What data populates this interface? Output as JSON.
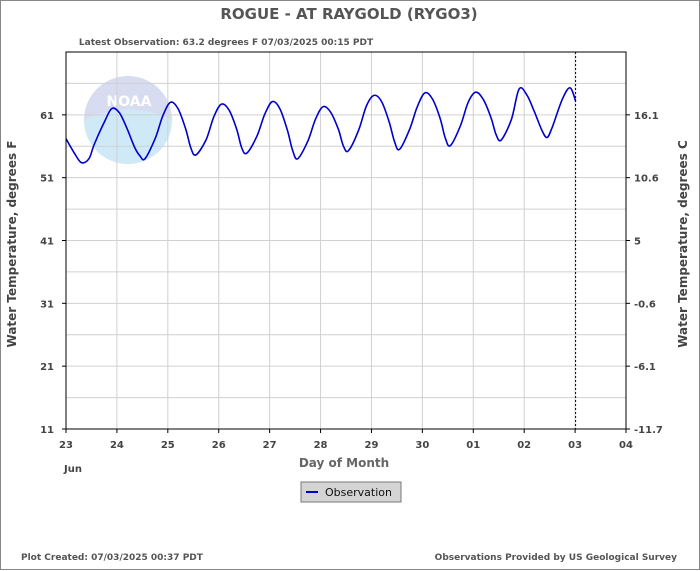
{
  "chart_data": {
    "type": "line",
    "title": "ROGUE - AT RAYGOLD  (RYGO3)",
    "subtitle": "Latest Observation: 63.2 degrees F 07/03/2025 00:15 PDT",
    "xlabel": "Day of Month",
    "xlabel_month": "Jun",
    "ylabel_left": "Water Temperature, degrees F",
    "ylabel_right": "Water Temperature, degrees C",
    "x_ticks": [
      "23",
      "24",
      "25",
      "26",
      "27",
      "28",
      "29",
      "30",
      "01",
      "02",
      "03",
      "04"
    ],
    "xlim": [
      0,
      11
    ],
    "ylim": [
      11,
      71
    ],
    "y_ticks_left": [
      "61",
      "51",
      "41",
      "31",
      "21",
      "11"
    ],
    "y_ticks_left_values": [
      61,
      51,
      41,
      31,
      21,
      11
    ],
    "y_ticks_right": [
      "16.1",
      "10.6",
      "5",
      "-0.6",
      "-6.1",
      "-11.7"
    ],
    "grid": true,
    "latest_observation_x": 10.01,
    "series": [
      {
        "name": "Observation",
        "color": "#0000cc",
        "x": [
          0.0,
          0.15,
          0.3,
          0.45,
          0.55,
          0.75,
          0.9,
          1.05,
          1.2,
          1.35,
          1.45,
          1.55,
          1.75,
          1.9,
          2.05,
          2.2,
          2.35,
          2.45,
          2.55,
          2.75,
          2.9,
          3.05,
          3.2,
          3.35,
          3.45,
          3.55,
          3.75,
          3.9,
          4.05,
          4.2,
          4.35,
          4.45,
          4.55,
          4.75,
          4.9,
          5.05,
          5.2,
          5.35,
          5.45,
          5.55,
          5.75,
          5.9,
          6.05,
          6.2,
          6.35,
          6.45,
          6.55,
          6.75,
          6.9,
          7.05,
          7.2,
          7.35,
          7.45,
          7.55,
          7.75,
          7.9,
          8.05,
          8.2,
          8.35,
          8.45,
          8.55,
          8.75,
          8.9,
          9.05,
          9.2,
          9.35,
          9.45,
          9.55,
          9.75,
          9.9,
          10.01
        ],
        "y": [
          57.2,
          55.1,
          53.4,
          54.0,
          56.2,
          59.8,
          62.0,
          61.3,
          58.8,
          55.8,
          54.5,
          54.0,
          57.2,
          60.8,
          63.0,
          62.0,
          58.8,
          55.8,
          54.6,
          57.0,
          60.6,
          62.7,
          61.8,
          58.8,
          55.8,
          54.9,
          57.6,
          61.0,
          63.1,
          62.0,
          58.5,
          55.4,
          54.0,
          56.8,
          60.3,
          62.3,
          61.4,
          58.7,
          56.0,
          55.3,
          58.6,
          62.4,
          64.1,
          63.1,
          59.8,
          56.8,
          55.5,
          58.7,
          62.3,
          64.5,
          63.5,
          60.4,
          57.3,
          56.1,
          59.3,
          63.0,
          64.6,
          63.4,
          60.5,
          57.8,
          57.0,
          60.3,
          65.1,
          64.2,
          61.5,
          58.5,
          57.4,
          59.0,
          63.5,
          65.3,
          63.2
        ]
      }
    ],
    "legend": {
      "label": "Observation",
      "placement": "bottom-center"
    }
  },
  "footer": {
    "left": "Plot Created: 07/03/2025 00:37 PDT",
    "right": "Observations Provided by US Geological Survey"
  },
  "watermark": {
    "text": "NOAA",
    "colors": {
      "top": "#d8dcf0",
      "bottom": "#cfeaf6"
    }
  }
}
